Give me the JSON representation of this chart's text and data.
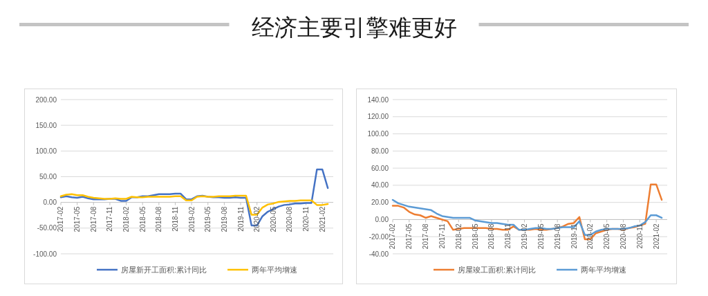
{
  "chart_data": [
    {
      "type": "other",
      "title": "经济主要引擎难更好"
    },
    {
      "type": "line",
      "x": [
        "2017-02",
        "2017-03",
        "2017-04",
        "2017-05",
        "2017-06",
        "2017-07",
        "2017-08",
        "2017-09",
        "2017-10",
        "2017-11",
        "2017-12",
        "2018-01",
        "2018-02",
        "2018-03",
        "2018-04",
        "2018-05",
        "2018-06",
        "2018-07",
        "2018-08",
        "2018-09",
        "2018-10",
        "2018-11",
        "2018-12",
        "2019-01",
        "2019-02",
        "2019-03",
        "2019-04",
        "2019-05",
        "2019-06",
        "2019-07",
        "2019-08",
        "2019-09",
        "2019-10",
        "2019-11",
        "2019-12",
        "2020-01",
        "2020-02",
        "2020-03",
        "2020-04",
        "2020-05",
        "2020-06",
        "2020-07",
        "2020-08",
        "2020-09",
        "2020-10",
        "2020-11",
        "2020-12",
        "2021-01",
        "2021-02",
        "2021-03"
      ],
      "xlim": [
        "2017-02",
        "2021-04"
      ],
      "xticks": [
        "2017-02",
        "2017-05",
        "2017-08",
        "2017-11",
        "2018-02",
        "2018-05",
        "2018-08",
        "2018-11",
        "2019-02",
        "2019-05",
        "2019-08",
        "2019-11",
        "2020-02",
        "2020-05",
        "2020-08",
        "2020-11",
        "2021-02"
      ],
      "ylim": [
        -100,
        200
      ],
      "yticks": [
        {
          "value": -100,
          "label": "-100.00"
        },
        {
          "value": -50,
          "label": "-50.00"
        },
        {
          "value": 0,
          "label": "0.00"
        },
        {
          "value": 50,
          "label": "50.00"
        },
        {
          "value": 100,
          "label": "100.00"
        },
        {
          "value": 150,
          "label": "150.00"
        },
        {
          "value": 200,
          "label": "200.00"
        }
      ],
      "grid": "y",
      "legend": "bottom",
      "series": [
        {
          "name": "房屋新开工面积:累计同比",
          "color": "#4472c4",
          "values": [
            10,
            12,
            10,
            9,
            11,
            8,
            6,
            6,
            6,
            7,
            7,
            3,
            3,
            10,
            10,
            12,
            12,
            14,
            16,
            16,
            16,
            17,
            17,
            6,
            6,
            12,
            13,
            11,
            10,
            10,
            9,
            9,
            10,
            9,
            9,
            -45,
            -45,
            -27,
            -18,
            -13,
            -8,
            -5,
            -4,
            -2,
            -2,
            -1,
            -1,
            64,
            64,
            28
          ]
        },
        {
          "name": "两年平均增速",
          "color": "#ffc000",
          "values": [
            12,
            15,
            16,
            14,
            14,
            11,
            9,
            8,
            7,
            7,
            8,
            7,
            7,
            11,
            10,
            10,
            11,
            11,
            11,
            11,
            11,
            12,
            12,
            4,
            4,
            11,
            12,
            11,
            11,
            12,
            12,
            12,
            13,
            13,
            13,
            -24,
            -24,
            -10,
            -4,
            -2,
            1,
            2,
            3,
            3,
            4,
            4,
            4,
            -5,
            -5,
            -3
          ]
        }
      ]
    },
    {
      "type": "line",
      "x": [
        "2017-02",
        "2017-03",
        "2017-04",
        "2017-05",
        "2017-06",
        "2017-07",
        "2017-08",
        "2017-09",
        "2017-10",
        "2017-11",
        "2017-12",
        "2018-01",
        "2018-02",
        "2018-03",
        "2018-04",
        "2018-05",
        "2018-06",
        "2018-07",
        "2018-08",
        "2018-09",
        "2018-10",
        "2018-11",
        "2018-12",
        "2019-01",
        "2019-02",
        "2019-03",
        "2019-04",
        "2019-05",
        "2019-06",
        "2019-07",
        "2019-08",
        "2019-09",
        "2019-10",
        "2019-11",
        "2019-12",
        "2020-01",
        "2020-02",
        "2020-03",
        "2020-04",
        "2020-05",
        "2020-06",
        "2020-07",
        "2020-08",
        "2020-09",
        "2020-10",
        "2020-11",
        "2020-12",
        "2021-01",
        "2021-02",
        "2021-03"
      ],
      "xlim": [
        "2017-02",
        "2021-04"
      ],
      "xticks": [
        "2017-02",
        "2017-05",
        "2017-08",
        "2017-11",
        "2018-02",
        "2018-05",
        "2018-08",
        "2018-11",
        "2019-02",
        "2019-05",
        "2019-08",
        "2019-11",
        "2020-02",
        "2020-05",
        "2020-08",
        "2020-11",
        "2021-02"
      ],
      "ylim": [
        -40,
        140
      ],
      "yticks": [
        {
          "value": -40,
          "label": "-40.00"
        },
        {
          "value": -20,
          "label": "-20.00"
        },
        {
          "value": 0,
          "label": "0.00"
        },
        {
          "value": 20,
          "label": "20.00"
        },
        {
          "value": 40,
          "label": "40.00"
        },
        {
          "value": 60,
          "label": "60.00"
        },
        {
          "value": 80,
          "label": "80.00"
        },
        {
          "value": 100,
          "label": "100.00"
        },
        {
          "value": 120,
          "label": "120.00"
        },
        {
          "value": 140,
          "label": "140.00"
        }
      ],
      "grid": "y",
      "legend": "bottom",
      "series": [
        {
          "name": "房屋竣工面积:累计同比",
          "color": "#ed7d31",
          "values": [
            16,
            16,
            14,
            9,
            6,
            5,
            2,
            4,
            2,
            0,
            -2,
            -12,
            -11,
            -10,
            -10,
            -10,
            -10,
            -10,
            -11,
            -11,
            -12,
            -12,
            -8,
            -12,
            -12,
            -12,
            -11,
            -12,
            -12,
            -11,
            -10,
            -8,
            -5,
            -4,
            3,
            -23,
            -23,
            -16,
            -14,
            -12,
            -11,
            -11,
            -12,
            -10,
            -9,
            -7,
            -5,
            41,
            41,
            23
          ]
        },
        {
          "name": "两年平均增速",
          "color": "#5b9bd5",
          "values": [
            23,
            19,
            17,
            15,
            14,
            13,
            12,
            11,
            7,
            4,
            3,
            2,
            2,
            2,
            2,
            -1,
            -2,
            -3,
            -4,
            -4,
            -5,
            -6,
            -6,
            -12,
            -12,
            -11,
            -10,
            -10,
            -11,
            -11,
            -10,
            -9,
            -9,
            -9,
            -2,
            -18,
            -18,
            -14,
            -12,
            -11,
            -11,
            -11,
            -11,
            -10,
            -8,
            -7,
            -3,
            5,
            5,
            2
          ]
        }
      ]
    }
  ]
}
